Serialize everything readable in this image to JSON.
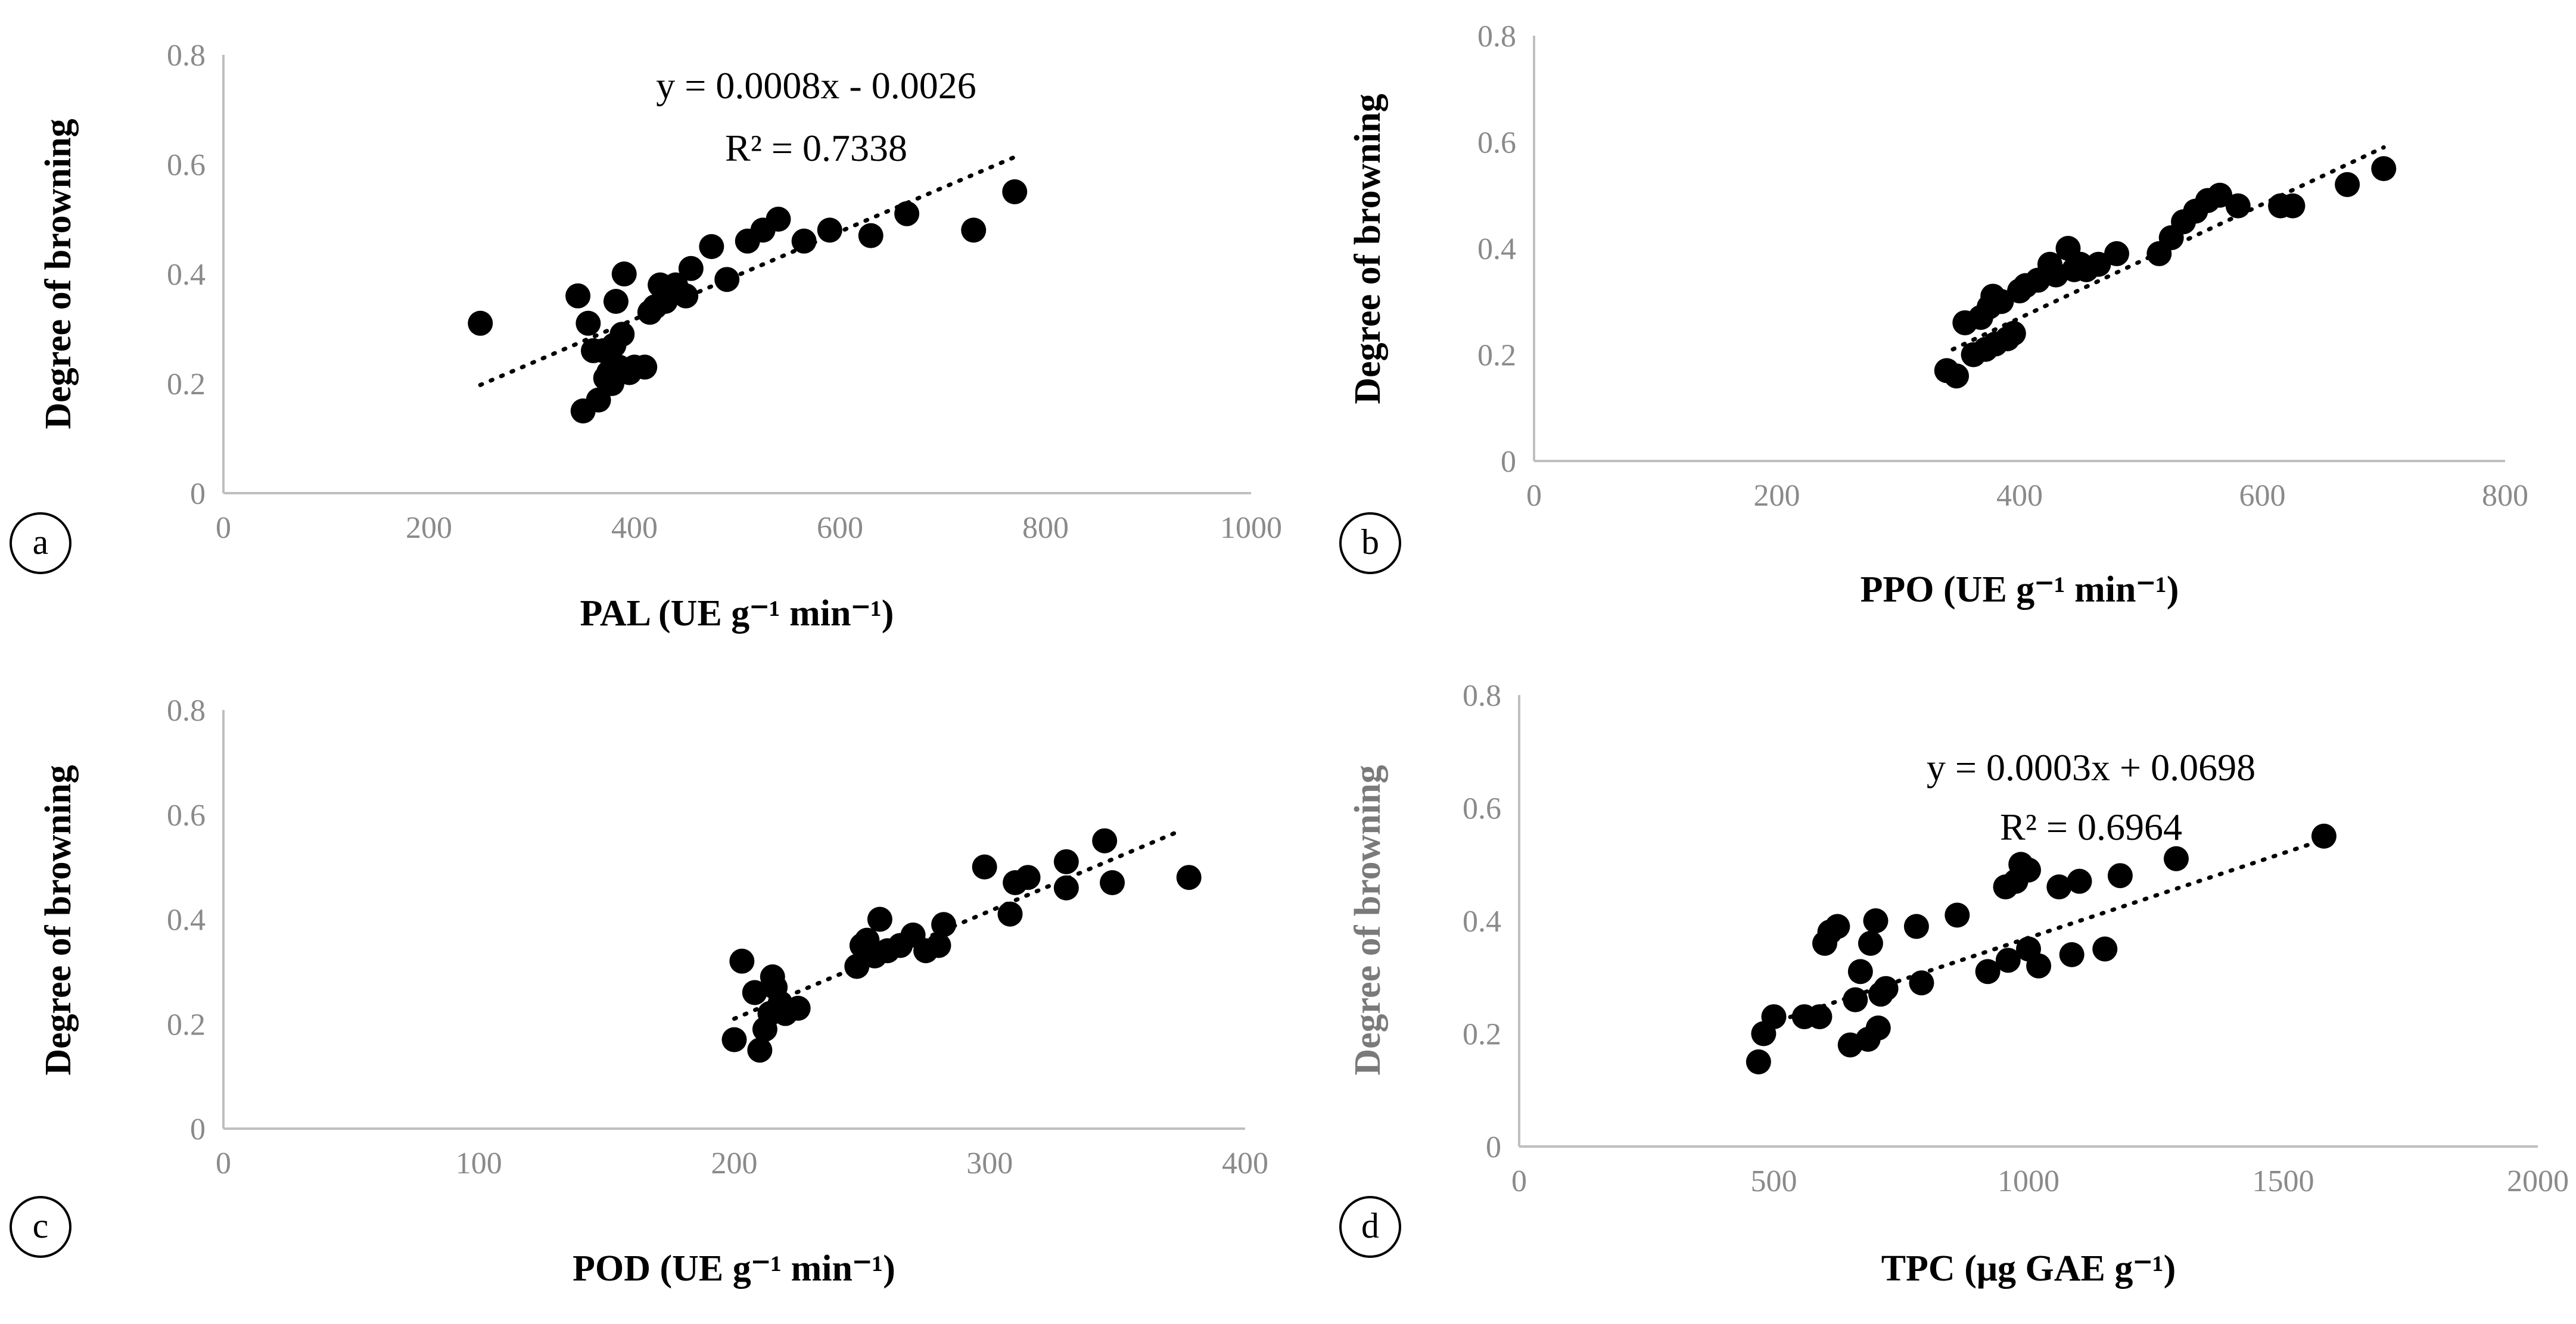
{
  "chart_data": [
    {
      "type": "scatter",
      "panel": "a",
      "xlabel": "PAL (UE g⁻¹ min⁻¹)",
      "ylabel": "Degree of browning",
      "xlim": [
        0,
        1000
      ],
      "ylim": [
        0,
        0.8
      ],
      "xticks": [
        "0",
        "200",
        "400",
        "600",
        "800",
        "1000"
      ],
      "yticks": [
        "0",
        "0.2",
        "0.4",
        "0.6",
        "0.8"
      ],
      "equation": "y = 0.0008x - 0.0026",
      "r2": "R² = 0.7338",
      "trendline": {
        "x0": 250,
        "x1": 770
      },
      "x": [
        250,
        345,
        350,
        355,
        360,
        365,
        370,
        372,
        375,
        378,
        380,
        382,
        385,
        388,
        390,
        395,
        400,
        410,
        415,
        420,
        425,
        430,
        440,
        450,
        455,
        475,
        490,
        510,
        525,
        540,
        565,
        590,
        630,
        665,
        730,
        770
      ],
      "y": [
        0.31,
        0.36,
        0.15,
        0.31,
        0.26,
        0.17,
        0.26,
        0.21,
        0.22,
        0.2,
        0.27,
        0.35,
        0.23,
        0.29,
        0.4,
        0.22,
        0.23,
        0.23,
        0.33,
        0.34,
        0.38,
        0.35,
        0.38,
        0.36,
        0.41,
        0.45,
        0.39,
        0.46,
        0.48,
        0.5,
        0.46,
        0.48,
        0.47,
        0.51,
        0.48,
        0.55
      ]
    },
    {
      "type": "scatter",
      "panel": "b",
      "xlabel": "PPO (UE g⁻¹ min⁻¹)",
      "ylabel": "Degree of browning",
      "xlim": [
        0,
        800
      ],
      "ylim": [
        0,
        0.8
      ],
      "xticks": [
        "0",
        "200",
        "400",
        "600",
        "800"
      ],
      "yticks": [
        "0",
        "0.2",
        "0.4",
        "0.6",
        "0.8"
      ],
      "equation": "",
      "r2": "",
      "trendline": {
        "x0": 345,
        "x1": 700,
        "y0": 0.21,
        "y1": 0.59
      },
      "x": [
        340,
        348,
        355,
        362,
        368,
        372,
        375,
        378,
        380,
        385,
        390,
        395,
        400,
        405,
        415,
        425,
        430,
        440,
        445,
        450,
        455,
        465,
        480,
        515,
        525,
        535,
        545,
        555,
        565,
        580,
        615,
        625,
        670,
        700
      ],
      "y": [
        0.17,
        0.16,
        0.26,
        0.2,
        0.27,
        0.21,
        0.29,
        0.31,
        0.22,
        0.3,
        0.23,
        0.24,
        0.32,
        0.33,
        0.34,
        0.37,
        0.35,
        0.4,
        0.36,
        0.37,
        0.36,
        0.37,
        0.39,
        0.39,
        0.42,
        0.45,
        0.47,
        0.49,
        0.5,
        0.48,
        0.48,
        0.48,
        0.52,
        0.55
      ]
    },
    {
      "type": "scatter",
      "panel": "c",
      "xlabel": "POD (UE g⁻¹ min⁻¹)",
      "ylabel": "Degree of browning",
      "xlim": [
        0,
        400
      ],
      "ylim": [
        0,
        0.8
      ],
      "xticks": [
        "0",
        "100",
        "200",
        "300",
        "400"
      ],
      "yticks": [
        "0",
        "0.2",
        "0.4",
        "0.6",
        "0.8"
      ],
      "equation": "",
      "r2": "",
      "trendline": {
        "x0": 200,
        "x1": 375,
        "y0": 0.21,
        "y1": 0.57
      },
      "x": [
        200,
        203,
        208,
        210,
        212,
        214,
        215,
        216,
        218,
        220,
        225,
        248,
        250,
        252,
        255,
        257,
        260,
        265,
        270,
        275,
        280,
        282,
        298,
        308,
        310,
        315,
        330,
        330,
        345,
        348,
        378
      ],
      "y": [
        0.17,
        0.32,
        0.26,
        0.15,
        0.19,
        0.22,
        0.29,
        0.27,
        0.24,
        0.22,
        0.23,
        0.31,
        0.35,
        0.36,
        0.33,
        0.4,
        0.34,
        0.35,
        0.37,
        0.34,
        0.35,
        0.39,
        0.5,
        0.41,
        0.47,
        0.48,
        0.46,
        0.51,
        0.55,
        0.47,
        0.48
      ]
    },
    {
      "type": "scatter",
      "panel": "d",
      "xlabel": "TPC (μg GAE g⁻¹)",
      "ylabel": "Degree of browning",
      "xlim": [
        0,
        2000
      ],
      "ylim": [
        0,
        0.8
      ],
      "xticks": [
        "0",
        "500",
        "1000",
        "1500",
        "2000"
      ],
      "yticks": [
        "0",
        "0.2",
        "0.4",
        "0.6",
        "0.8"
      ],
      "equation": "y = 0.0003x + 0.0698",
      "r2": "R² = 0.6964",
      "trendline": {
        "x0": 490,
        "x1": 1580
      },
      "x": [
        470,
        480,
        500,
        560,
        590,
        600,
        610,
        625,
        650,
        660,
        670,
        685,
        690,
        700,
        705,
        710,
        720,
        780,
        790,
        860,
        920,
        955,
        960,
        975,
        985,
        1000,
        1000,
        1020,
        1060,
        1085,
        1100,
        1150,
        1180,
        1290,
        1580
      ],
      "y": [
        0.15,
        0.2,
        0.23,
        0.23,
        0.23,
        0.36,
        0.38,
        0.39,
        0.18,
        0.26,
        0.31,
        0.19,
        0.36,
        0.4,
        0.21,
        0.27,
        0.28,
        0.39,
        0.29,
        0.41,
        0.31,
        0.46,
        0.33,
        0.47,
        0.5,
        0.49,
        0.35,
        0.32,
        0.46,
        0.34,
        0.47,
        0.35,
        0.48,
        0.51,
        0.55
      ]
    }
  ]
}
